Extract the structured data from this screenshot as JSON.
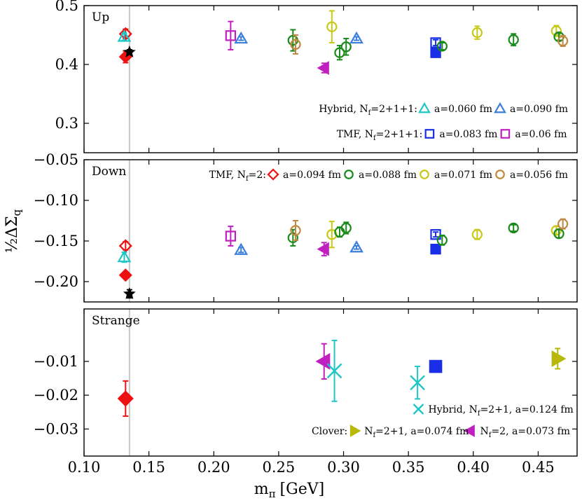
{
  "chart_data": {
    "type": "scatter",
    "xlabel": "m",
    "xlabel_sub": "π",
    "xlabel_unit": "[GeV]",
    "ylabel_prefix": "½ΔΣ",
    "ylabel_sub": "q",
    "xlim": [
      0.1,
      0.48
    ],
    "xticks": [
      "0.10",
      "0.15",
      "0.20",
      "0.25",
      "0.30",
      "0.35",
      "0.40",
      "0.45"
    ],
    "physical_pion_mass": 0.135,
    "colors": {
      "hybrid_060": "#1fc6c6",
      "hybrid_090": "#3b7fdc",
      "tmf_083": "#1a2ee8",
      "tmf_06": "#c020c0",
      "tmf2_094": "#ee1111",
      "tmf2_088": "#1a8a1a",
      "tmf2_071": "#c8c816",
      "tmf2_056": "#c08840",
      "clover_2p1": "#b8b808",
      "clover_2": "#c020c0",
      "hybrid_124": "#1fc6c6",
      "black": "#000000"
    },
    "panels": [
      {
        "label": "Up",
        "ylim": [
          0.25,
          0.5
        ],
        "yticks": [
          "0.5",
          "0.4",
          "0.3"
        ],
        "ytick_values": [
          0.5,
          0.4,
          0.3
        ],
        "legend": [
          {
            "prefix": "Hybrid, N",
            "prefix_sub": "f",
            "prefix_tail": "=2+1+1:",
            "entries": [
              {
                "marker": "triangle-up",
                "filled": false,
                "color_key": "hybrid_060",
                "label": "a=0.060 fm"
              },
              {
                "marker": "triangle-up",
                "filled": false,
                "color_key": "hybrid_090",
                "label": "a=0.090 fm"
              }
            ]
          },
          {
            "prefix": "TMF, N",
            "prefix_sub": "f",
            "prefix_tail": "=2+1+1:",
            "entries": [
              {
                "marker": "square",
                "filled": false,
                "color_key": "tmf_083",
                "label": "a=0.083 fm"
              },
              {
                "marker": "square",
                "filled": false,
                "color_key": "tmf_06",
                "label": "a=0.06 fm"
              }
            ]
          }
        ],
        "points": [
          {
            "x": 0.132,
            "y": 0.452,
            "marker": "diamond",
            "filled": false,
            "color_key": "tmf2_094",
            "err": 0.008
          },
          {
            "x": 0.131,
            "y": 0.447,
            "marker": "triangle-up",
            "filled": false,
            "color_key": "hybrid_060",
            "err": 0.006
          },
          {
            "x": 0.132,
            "y": 0.413,
            "marker": "diamond",
            "filled": true,
            "color_key": "tmf2_094",
            "err": 0.01
          },
          {
            "x": 0.135,
            "y": 0.421,
            "marker": "star",
            "filled": true,
            "color_key": "black",
            "err": 0.004
          },
          {
            "x": 0.213,
            "y": 0.449,
            "marker": "square",
            "filled": false,
            "color_key": "tmf_06",
            "err": 0.024
          },
          {
            "x": 0.221,
            "y": 0.444,
            "marker": "triangle-up",
            "filled": false,
            "color_key": "hybrid_090",
            "err": 0.003
          },
          {
            "x": 0.261,
            "y": 0.441,
            "marker": "circle",
            "filled": false,
            "color_key": "tmf2_088",
            "err": 0.018
          },
          {
            "x": 0.263,
            "y": 0.434,
            "marker": "circle",
            "filled": false,
            "color_key": "tmf2_056",
            "err": 0.016
          },
          {
            "x": 0.285,
            "y": 0.394,
            "marker": "triangle-left",
            "filled": true,
            "color_key": "clover_2",
            "err": 0.008
          },
          {
            "x": 0.291,
            "y": 0.464,
            "marker": "circle",
            "filled": false,
            "color_key": "tmf2_071",
            "err": 0.027
          },
          {
            "x": 0.297,
            "y": 0.42,
            "marker": "circle",
            "filled": false,
            "color_key": "tmf2_088",
            "err": 0.012
          },
          {
            "x": 0.302,
            "y": 0.43,
            "marker": "circle",
            "filled": false,
            "color_key": "tmf2_088",
            "err": 0.014
          },
          {
            "x": 0.31,
            "y": 0.444,
            "marker": "triangle-up",
            "filled": false,
            "color_key": "hybrid_090",
            "err": 0.003
          },
          {
            "x": 0.371,
            "y": 0.437,
            "marker": "square",
            "filled": false,
            "color_key": "tmf_083",
            "err": 0.005
          },
          {
            "x": 0.371,
            "y": 0.42,
            "marker": "square",
            "filled": true,
            "color_key": "tmf_083",
            "err": 0.004
          },
          {
            "x": 0.376,
            "y": 0.431,
            "marker": "circle",
            "filled": false,
            "color_key": "tmf2_088",
            "err": 0.006
          },
          {
            "x": 0.403,
            "y": 0.454,
            "marker": "circle",
            "filled": false,
            "color_key": "tmf2_071",
            "err": 0.011
          },
          {
            "x": 0.431,
            "y": 0.442,
            "marker": "circle",
            "filled": false,
            "color_key": "tmf2_088",
            "err": 0.01
          },
          {
            "x": 0.464,
            "y": 0.457,
            "marker": "circle",
            "filled": false,
            "color_key": "tmf2_071",
            "err": 0.009
          },
          {
            "x": 0.466,
            "y": 0.447,
            "marker": "circle",
            "filled": false,
            "color_key": "tmf2_088",
            "err": 0.006
          },
          {
            "x": 0.469,
            "y": 0.44,
            "marker": "circle",
            "filled": false,
            "color_key": "tmf2_056",
            "err": 0.009
          }
        ]
      },
      {
        "label": "Down",
        "ylim": [
          -0.225,
          -0.05
        ],
        "yticks": [
          "−0.05",
          "−0.10",
          "−0.15",
          "−0.20"
        ],
        "ytick_values": [
          -0.05,
          -0.1,
          -0.15,
          -0.2
        ],
        "legend": [
          {
            "prefix": "TMF, N",
            "prefix_sub": "f",
            "prefix_tail": "=2:",
            "entries": [
              {
                "marker": "diamond",
                "filled": false,
                "color_key": "tmf2_094",
                "label": "a=0.094 fm"
              },
              {
                "marker": "circle",
                "filled": false,
                "color_key": "tmf2_088",
                "label": "a=0.088 fm"
              },
              {
                "marker": "circle",
                "filled": false,
                "color_key": "tmf2_071",
                "label": "a=0.071 fm"
              },
              {
                "marker": "circle",
                "filled": false,
                "color_key": "tmf2_056",
                "label": "a=0.056 fm"
              }
            ]
          }
        ],
        "points": [
          {
            "x": 0.132,
            "y": -0.156,
            "marker": "diamond",
            "filled": false,
            "color_key": "tmf2_094",
            "err": 0.005
          },
          {
            "x": 0.131,
            "y": -0.17,
            "marker": "triangle-up",
            "filled": false,
            "color_key": "hybrid_060",
            "err": 0.006
          },
          {
            "x": 0.132,
            "y": -0.192,
            "marker": "diamond",
            "filled": true,
            "color_key": "tmf2_094",
            "err": 0.004
          },
          {
            "x": 0.135,
            "y": -0.215,
            "marker": "star",
            "filled": true,
            "color_key": "black",
            "err": 0.005
          },
          {
            "x": 0.213,
            "y": -0.144,
            "marker": "square",
            "filled": false,
            "color_key": "tmf_06",
            "err": 0.012
          },
          {
            "x": 0.221,
            "y": -0.161,
            "marker": "triangle-up",
            "filled": false,
            "color_key": "hybrid_090",
            "err": 0.003
          },
          {
            "x": 0.261,
            "y": -0.146,
            "marker": "circle",
            "filled": false,
            "color_key": "tmf2_088",
            "err": 0.01
          },
          {
            "x": 0.263,
            "y": -0.137,
            "marker": "circle",
            "filled": false,
            "color_key": "tmf2_056",
            "err": 0.012
          },
          {
            "x": 0.285,
            "y": -0.16,
            "marker": "triangle-left",
            "filled": true,
            "color_key": "clover_2",
            "err": 0.008
          },
          {
            "x": 0.291,
            "y": -0.142,
            "marker": "circle",
            "filled": false,
            "color_key": "tmf2_071",
            "err": 0.016
          },
          {
            "x": 0.297,
            "y": -0.139,
            "marker": "circle",
            "filled": false,
            "color_key": "tmf2_088",
            "err": 0.006
          },
          {
            "x": 0.302,
            "y": -0.134,
            "marker": "circle",
            "filled": false,
            "color_key": "tmf2_088",
            "err": 0.007
          },
          {
            "x": 0.31,
            "y": -0.158,
            "marker": "triangle-up",
            "filled": false,
            "color_key": "hybrid_090",
            "err": 0.002
          },
          {
            "x": 0.371,
            "y": -0.142,
            "marker": "square",
            "filled": false,
            "color_key": "tmf_083",
            "err": 0.003
          },
          {
            "x": 0.371,
            "y": -0.16,
            "marker": "square",
            "filled": true,
            "color_key": "tmf_083",
            "err": 0.003
          },
          {
            "x": 0.376,
            "y": -0.149,
            "marker": "circle",
            "filled": false,
            "color_key": "tmf2_088",
            "err": 0.006
          },
          {
            "x": 0.403,
            "y": -0.142,
            "marker": "circle",
            "filled": false,
            "color_key": "tmf2_071",
            "err": 0.006
          },
          {
            "x": 0.431,
            "y": -0.134,
            "marker": "circle",
            "filled": false,
            "color_key": "tmf2_088",
            "err": 0.004
          },
          {
            "x": 0.464,
            "y": -0.137,
            "marker": "circle",
            "filled": false,
            "color_key": "tmf2_071",
            "err": 0.005
          },
          {
            "x": 0.466,
            "y": -0.141,
            "marker": "circle",
            "filled": false,
            "color_key": "tmf2_088",
            "err": 0.005
          },
          {
            "x": 0.469,
            "y": -0.129,
            "marker": "circle",
            "filled": false,
            "color_key": "tmf2_056",
            "err": 0.006
          }
        ]
      },
      {
        "label": "Strange",
        "ylim": [
          -0.038,
          0.0055
        ],
        "yticks": [
          "−0.01",
          "−0.02",
          "−0.03"
        ],
        "ytick_values": [
          -0.01,
          -0.02,
          -0.03
        ],
        "legend": [
          {
            "prefix": "",
            "prefix_sub": "",
            "prefix_tail": "",
            "entries": [
              {
                "marker": "x",
                "filled": false,
                "color_key": "hybrid_124",
                "label": "Hybrid, N",
                "label_sub": "f",
                "label_tail": "=2+1, a=0.124 fm"
              }
            ]
          },
          {
            "prefix": "Clover:",
            "prefix_sub": "",
            "prefix_tail": "",
            "entries": [
              {
                "marker": "triangle-right",
                "filled": true,
                "color_key": "clover_2p1",
                "label": "N",
                "label_sub": "f",
                "label_tail": "=2+1, a=0.074 fm"
              },
              {
                "marker": "triangle-left",
                "filled": true,
                "color_key": "clover_2",
                "label": "N",
                "label_sub": "f",
                "label_tail": "=2, a=0.073 fm"
              }
            ]
          }
        ],
        "points": [
          {
            "x": 0.132,
            "y": -0.021,
            "marker": "diamond",
            "filled": true,
            "color_key": "tmf2_094",
            "err": 0.0052
          },
          {
            "x": 0.285,
            "y": -0.01,
            "marker": "triangle-left",
            "filled": true,
            "color_key": "clover_2",
            "err": 0.0052
          },
          {
            "x": 0.293,
            "y": -0.0128,
            "marker": "x",
            "filled": false,
            "color_key": "hybrid_124",
            "err": 0.009
          },
          {
            "x": 0.357,
            "y": -0.0163,
            "marker": "x",
            "filled": false,
            "color_key": "hybrid_124",
            "err": 0.0048
          },
          {
            "x": 0.371,
            "y": -0.0115,
            "marker": "square",
            "filled": true,
            "color_key": "tmf_083",
            "err": 0.0008
          },
          {
            "x": 0.465,
            "y": -0.0092,
            "marker": "triangle-right",
            "filled": true,
            "color_key": "clover_2p1",
            "err": 0.003
          }
        ]
      }
    ]
  }
}
